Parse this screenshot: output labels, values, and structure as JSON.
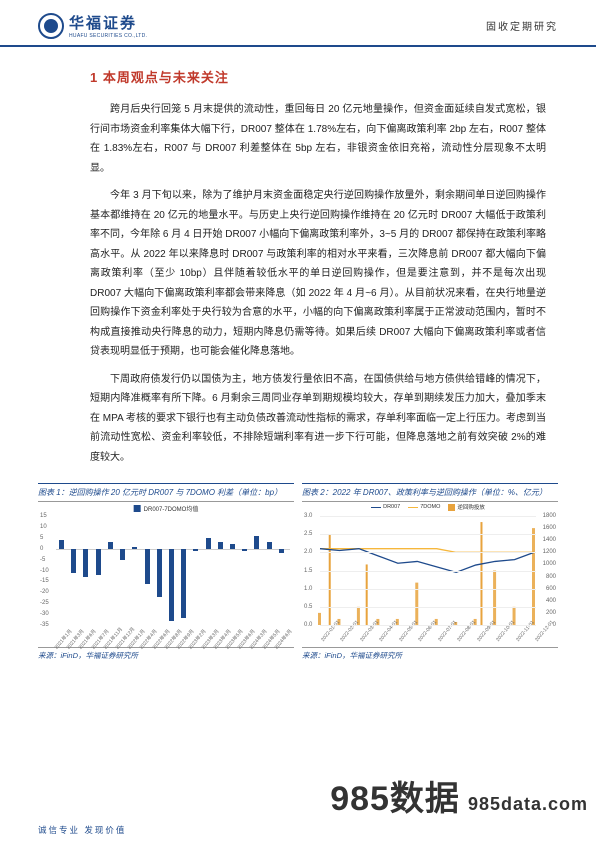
{
  "header": {
    "logo_cn": "华福证券",
    "logo_en": "HUAFU SECURITIES CO.,LTD.",
    "right": "固收定期研究"
  },
  "section": {
    "title": "1 本周观点与未来关注"
  },
  "paragraphs": {
    "p1": "跨月后央行回笼 5 月末提供的流动性，重回每日 20 亿元地量操作，但资金面延续自发式宽松，银行间市场资金利率集体大幅下行，DR007 整体在 1.78%左右，向下偏离政策利率 2bp 左右，R007 整体在 1.83%左右，R007 与 DR007 利差整体在 5bp 左右，非银资金依旧充裕，流动性分层现象不太明显。",
    "p2": "今年 3 月下旬以来，除为了维护月末资金面稳定央行逆回购操作放量外，剩余期间单日逆回购操作基本都维持在 20 亿元的地量水平。与历史上央行逆回购操作维持在 20 亿元时 DR007 大幅低于政策利率不同，今年除 6 月 4 日开始 DR007 小幅向下偏离政策利率外，3~5 月的 DR007 都保持在政策利率略高水平。从 2022 年以来降息时 DR007 与政策利率的相对水平来看，三次降息前 DR007 都大幅向下偏离政策利率（至少 10bp）且伴随着较低水平的单日逆回购操作，但是要注意到，并不是每次出现 DR007 大幅向下偏离政策利率都会带来降息（如 2022 年 4 月~6 月）。从目前状况来看，在央行地量逆回购操作下资金利率处于央行较为合意的水平，小幅的向下偏离政策利率属于正常波动范围内，暂时不构成直接推动央行降息的动力，短期内降息仍需等待。如果后续 DR007 大幅向下偏离政策利率或者信贷表现明显低于预期，也可能会催化降息落地。",
    "p3": "下周政府债发行仍以国债为主，地方债发行量依旧不高，在国债供给与地方债供给错峰的情况下，短期内降准概率有所下降。6 月剩余三周同业存单到期规模均较大，存单到期续发压力加大，叠加季末在 MPA 考核的要求下银行也有主动负债改善流动性指标的需求，存单利率面临一定上行压力。考虑到当前流动性宽松、资金利率较低，不排除短端利率有进一步下行可能，但降息落地之前有效突破 2%的难度较大。"
  },
  "chart_left": {
    "title": "图表 1：逆回购操作 20 亿元时 DR007 与 7DOMO 利差（单位：bp）",
    "legend": "DR007-7DOMO均值",
    "source": "来源：iFinD，华福证券研究所",
    "y_ticks": [
      15,
      10,
      5,
      0,
      -5,
      -10,
      -15,
      -20,
      -25,
      -30,
      -35
    ],
    "ylim": [
      -35,
      15
    ],
    "bar_color": "#1e4a8c",
    "x_labels": [
      "2021年1月",
      "2021年3月",
      "2021年6月",
      "2021年7月",
      "2021年11月",
      "2021年12月",
      "2022年1月",
      "2022年4月",
      "2022年6月",
      "2022年8月",
      "2022年9月",
      "2023年2月",
      "2023年3月",
      "2023年4月",
      "2023年5月",
      "2023年6月",
      "2024年3月",
      "2024年5月",
      "2024年6月"
    ],
    "values": [
      4,
      -11,
      -13,
      -12,
      3,
      -5,
      1,
      -16,
      -22,
      -33,
      -32,
      -1,
      5,
      3,
      2,
      -1,
      6,
      3,
      -2
    ]
  },
  "chart_right": {
    "title": "图表 2：2022 年 DR007、政策利率与逆回购操作（单位：%、亿元）",
    "source": "来源：iFinD，华福证券研究所",
    "legend_items": [
      "DR007",
      "7DOMO",
      "逆回购投放"
    ],
    "colors": {
      "dr007": "#1e4a8c",
      "omo": "#f6b73c",
      "repo": "#e8a33d"
    },
    "y_left_ticks": [
      3.0,
      2.5,
      2.0,
      1.5,
      1.0,
      0.5,
      0.0
    ],
    "y_left_lim": [
      0.0,
      3.0
    ],
    "y_right_ticks": [
      1800,
      1600,
      1400,
      1200,
      1000,
      800,
      600,
      400,
      200,
      0
    ],
    "y_right_lim": [
      0,
      1800
    ],
    "x_labels": [
      "2022-01-01",
      "2022-02-01",
      "2022-03-01",
      "2022-04-01",
      "2022-05-01",
      "2022-06-01",
      "2022-07-01",
      "2022-08-01",
      "2022-09-01",
      "2022-10-01",
      "2022-11-01",
      "2022-12-01"
    ],
    "dr007": [
      2.1,
      2.05,
      2.1,
      1.9,
      1.7,
      1.75,
      1.6,
      1.45,
      1.65,
      1.75,
      1.8,
      2.0
    ],
    "omo": [
      2.1,
      2.1,
      2.1,
      2.1,
      2.1,
      2.1,
      2.1,
      2.0,
      2.0,
      2.0,
      2.0,
      2.0
    ],
    "repo": [
      200,
      100,
      300,
      100,
      100,
      700,
      100,
      50,
      100,
      900,
      300,
      1600
    ],
    "repo_spikes": [
      [
        0.5,
        1500
      ],
      [
        2.4,
        1000
      ],
      [
        8.3,
        1700
      ]
    ]
  },
  "watermark": {
    "main": "985数据",
    "sub": "985data.com"
  },
  "footer": "诚信专业  发现价值"
}
